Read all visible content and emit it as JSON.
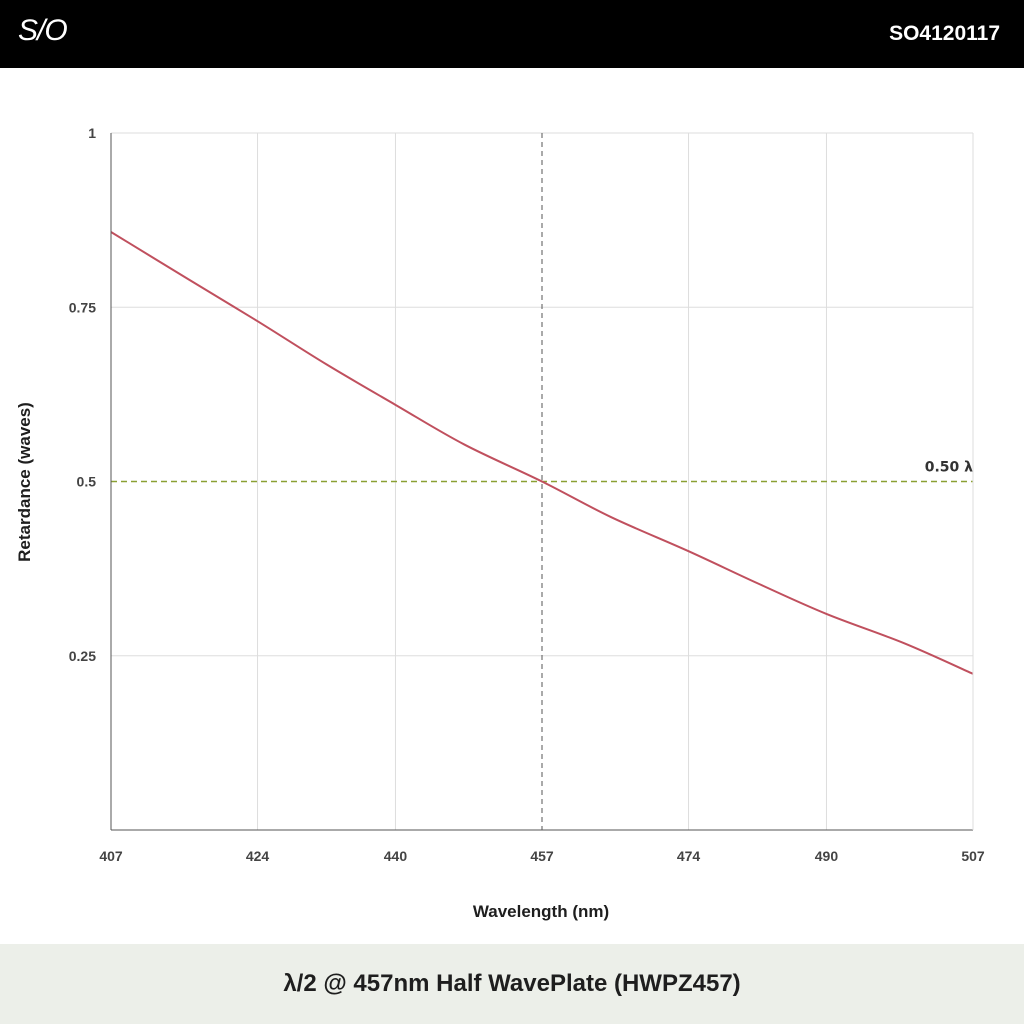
{
  "header": {
    "logo": "S/O",
    "code": "SO4120117"
  },
  "footer": {
    "title": "λ/2 @ 457nm Half WavePlate (HWPZ457)"
  },
  "chart_data": {
    "type": "line",
    "xlabel": "Wavelength (nm)",
    "ylabel": "Retardance (waves)",
    "xlim": [
      407,
      507
    ],
    "ylim": [
      0,
      1
    ],
    "x_ticks": [
      407,
      424,
      440,
      457,
      474,
      490,
      507
    ],
    "y_ticks": [
      0.25,
      0.5,
      0.75,
      1
    ],
    "y_tick_labels": [
      "0.25",
      "0.5",
      "0.75",
      "1"
    ],
    "grid": true,
    "series": [
      {
        "color": "#c0505e",
        "x": [
          407,
          416,
          424,
          432,
          440,
          448,
          457,
          465,
          474,
          482,
          490,
          499,
          507
        ],
        "y": [
          0.858,
          0.79,
          0.73,
          0.668,
          0.61,
          0.553,
          0.5,
          0.449,
          0.4,
          0.354,
          0.31,
          0.268,
          0.224
        ]
      }
    ],
    "reference_lines": {
      "horizontal": {
        "y": 0.5,
        "label": "0.50 λ",
        "color": "#8aa032"
      },
      "vertical": {
        "x": 457,
        "color": "#555555"
      }
    }
  }
}
